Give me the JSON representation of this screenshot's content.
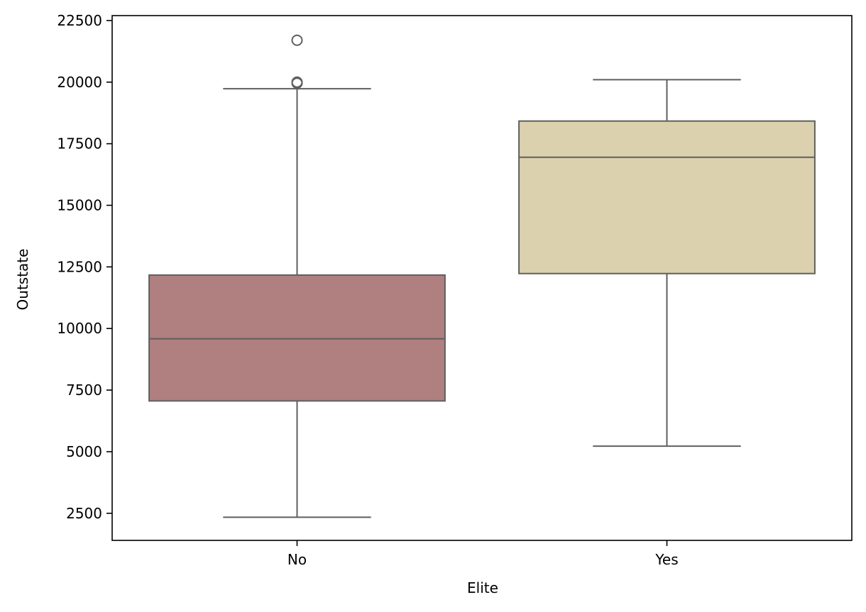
{
  "chart_data": {
    "type": "box",
    "title": "",
    "xlabel": "Elite",
    "ylabel": "Outstate",
    "categories": [
      "No",
      "Yes"
    ],
    "ylim": [
      1400,
      22700
    ],
    "yticks": [
      2500,
      5000,
      7500,
      10000,
      12500,
      15000,
      17500,
      20000,
      22500
    ],
    "grid": false,
    "legend": "none",
    "boxes": [
      {
        "category": "No",
        "whisker_low": 2340,
        "q1": 7060,
        "median": 9580,
        "q3": 12170,
        "whisker_high": 19730,
        "outliers": [
          19960,
          20000,
          21700
        ],
        "color": "#b07f7f"
      },
      {
        "category": "Yes",
        "whisker_low": 5225,
        "q1": 12230,
        "median": 16950,
        "q3": 18420,
        "whisker_high": 20100,
        "outliers": [],
        "color": "#dbd1af"
      }
    ],
    "line_color": "#5f5f5f"
  }
}
